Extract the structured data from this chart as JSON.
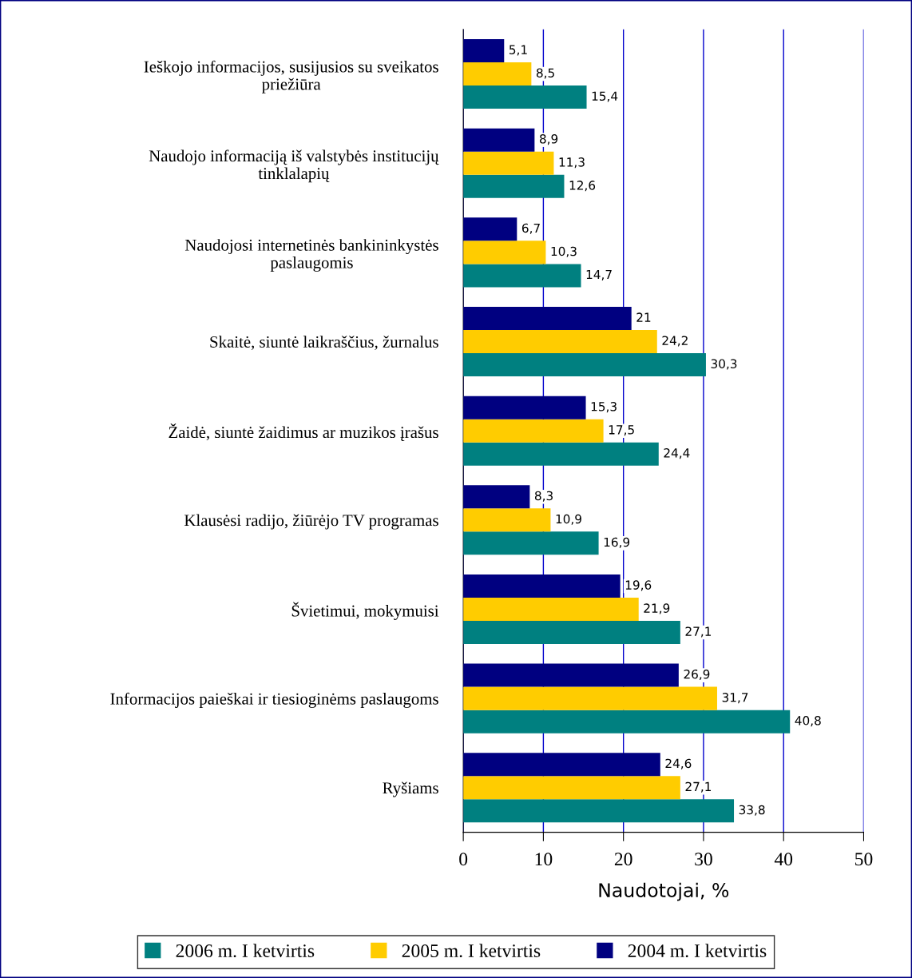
{
  "chart_data": {
    "type": "bar",
    "orientation": "horizontal",
    "xlabel": "Naudotojai, %",
    "categories": [
      "Ieškojo informacijos, susijusios su sveikatos\npriežiūra",
      "Naudojo informaciją iš valstybės institucijų\ntinklalapių",
      "Naudojosi internetinės bankininkystės\npaslaugomis",
      "Skaitė, siuntė laikraščius, žurnalus",
      "Žaidė, siuntė žaidimus ar muzikos įrašus",
      "Klausėsi radijo, žiūrėjo TV programas",
      "Švietimui, mokymuisi",
      "Informacijos paieškai ir tiesioginėms paslaugoms",
      "Ryšiams"
    ],
    "series": [
      {
        "name": "2006 m. I ketvirtis",
        "color": "#008080",
        "values": [
          15.4,
          12.6,
          14.7,
          30.3,
          24.4,
          16.9,
          27.1,
          40.8,
          33.8
        ],
        "value_labels": [
          "15,4",
          "12,6",
          "14,7",
          "30,3",
          "24,4",
          "16,9",
          "27,1",
          "40,8",
          "33,8"
        ]
      },
      {
        "name": "2005 m. I ketvirtis",
        "color": "#ffcc00",
        "values": [
          8.5,
          11.3,
          10.3,
          24.2,
          17.5,
          10.9,
          21.9,
          31.7,
          27.1
        ],
        "value_labels": [
          "8,5",
          "11,3",
          "10,3",
          "24,2",
          "17,5",
          "10,9",
          "21,9",
          "31,7",
          "27,1"
        ]
      },
      {
        "name": "2004 m. I ketvirtis",
        "color": "#000080",
        "values": [
          5.1,
          8.9,
          6.7,
          21,
          15.3,
          8.3,
          19.6,
          26.9,
          24.6
        ],
        "value_labels": [
          "5,1",
          "8,9",
          "6,7",
          "21",
          "15,3",
          "8,3",
          "19,6",
          "26,9",
          "24,6"
        ]
      }
    ],
    "xlim": [
      0,
      50
    ],
    "xticks": [
      0,
      10,
      20,
      30,
      40,
      50
    ],
    "grid": "x",
    "legend": "bottom"
  }
}
